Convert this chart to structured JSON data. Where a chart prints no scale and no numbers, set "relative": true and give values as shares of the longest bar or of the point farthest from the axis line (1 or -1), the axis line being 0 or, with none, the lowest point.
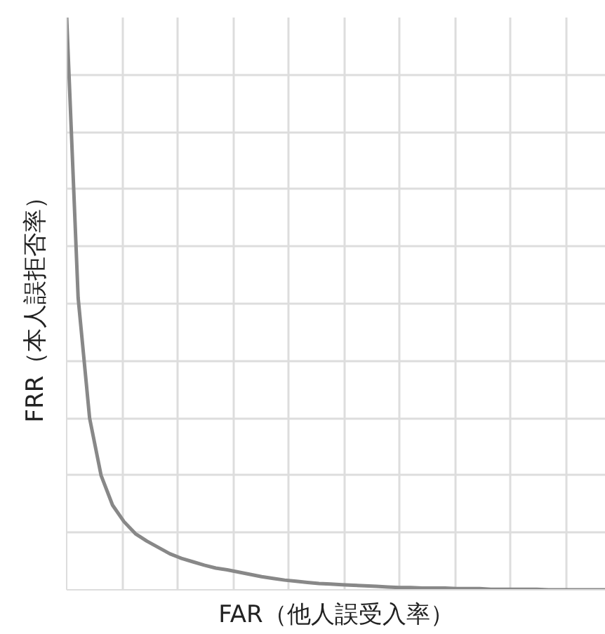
{
  "chart_data": {
    "type": "line",
    "xlabel": "FAR（他人誤受入率）",
    "ylabel": "FRR（本人誤拒否率）",
    "relative": true,
    "grid": true,
    "categories": [
      null,
      null,
      null,
      null,
      null,
      null,
      null,
      null,
      null,
      null,
      null,
      null,
      null,
      null,
      null,
      null,
      null,
      null,
      null,
      null,
      null,
      null,
      null,
      null,
      null,
      null,
      null,
      null,
      null,
      null,
      null,
      null,
      null,
      null,
      null,
      null,
      null,
      null,
      null,
      null,
      null,
      null,
      null,
      null,
      null,
      null,
      null,
      null
    ],
    "series": [
      {
        "color": "#888888",
        "values": [
          1.0,
          0.51,
          0.3,
          0.2,
          0.148,
          0.119,
          0.098,
          0.085,
          0.074,
          0.063,
          0.055,
          0.049,
          0.043,
          0.038,
          0.035,
          0.031,
          0.027,
          0.023,
          0.02,
          0.017,
          0.015,
          0.013,
          0.011,
          0.01,
          0.009,
          0.008,
          0.007,
          0.006,
          0.005,
          0.004,
          0.004,
          0.003,
          0.003,
          0.003,
          0.002,
          0.002,
          0.002,
          0.001,
          0.001,
          0.001,
          0.001,
          0.001,
          0,
          0,
          0,
          0,
          0,
          0
        ]
      }
    ]
  }
}
